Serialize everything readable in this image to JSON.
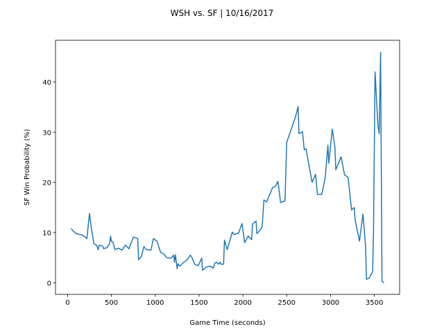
{
  "chart_data": {
    "type": "line",
    "title": "WSH vs. SF | 10/16/2017",
    "xlabel": "Game Time (seconds)",
    "ylabel": "SF Win Probability (%)",
    "color": "#1f77b4",
    "x": [
      40,
      70,
      100,
      150,
      180,
      220,
      250,
      270,
      300,
      330,
      350,
      360,
      400,
      410,
      450,
      480,
      490,
      500,
      520,
      540,
      580,
      620,
      660,
      700,
      750,
      800,
      810,
      840,
      870,
      900,
      950,
      980,
      1020,
      1060,
      1100,
      1130,
      1180,
      1210,
      1220,
      1230,
      1250,
      1260,
      1280,
      1320,
      1360,
      1400,
      1420,
      1450,
      1490,
      1530,
      1540,
      1580,
      1620,
      1640,
      1660,
      1680,
      1700,
      1720,
      1740,
      1750,
      1780,
      1790,
      1820,
      1880,
      1900,
      1950,
      1990,
      2020,
      2060,
      2100,
      2110,
      2150,
      2160,
      2200,
      2220,
      2240,
      2270,
      2340,
      2370,
      2400,
      2430,
      2480,
      2500,
      2600,
      2630,
      2640,
      2680,
      2700,
      2720,
      2790,
      2830,
      2850,
      2900,
      2940,
      2970,
      2980,
      3020,
      3050,
      3060,
      3120,
      3160,
      3200,
      3240,
      3270,
      3280,
      3330,
      3370,
      3400,
      3410,
      3440,
      3480,
      3490,
      3508,
      3540,
      3555,
      3571,
      3587,
      3610
    ],
    "values": [
      10.8,
      10.2,
      9.8,
      9.6,
      9.4,
      8.8,
      13.8,
      11,
      7.8,
      7.5,
      6.6,
      7.5,
      7.3,
      6.8,
      7,
      7.8,
      9.3,
      8.3,
      8,
      6.6,
      6.9,
      6.5,
      7.5,
      6.8,
      9.1,
      8.8,
      4.6,
      5.2,
      7.2,
      6.6,
      6.5,
      8.8,
      8.3,
      6.1,
      5.7,
      5,
      4.9,
      5.5,
      4.1,
      5.6,
      2.8,
      3.8,
      3.3,
      4,
      4.5,
      5.5,
      5,
      3.7,
      3.4,
      4.9,
      2.5,
      3.1,
      3.3,
      3.2,
      2.9,
      3.9,
      4.1,
      3.7,
      4.1,
      3.7,
      3.7,
      8.5,
      6.6,
      10.1,
      9.6,
      9.9,
      11.8,
      8,
      9.3,
      8.6,
      11.7,
      12.3,
      9.8,
      10.6,
      11.2,
      16.5,
      16.1,
      19,
      19.2,
      20.2,
      16,
      16.3,
      28,
      33,
      35.1,
      29.7,
      30.1,
      26.5,
      26.7,
      20,
      21.6,
      17.6,
      17.6,
      21,
      27.4,
      23.8,
      30.6,
      27,
      22.5,
      25.1,
      21.5,
      21,
      14.5,
      15,
      12.6,
      8.3,
      13.7,
      7.2,
      0.7,
      0.9,
      2.2,
      10,
      42,
      31.5,
      29.7,
      45.9,
      0.3,
      0
    ],
    "xlim": [
      -138,
      3788
    ],
    "ylim": [
      -2.3,
      48.3
    ],
    "xticks": [
      0,
      500,
      1000,
      1500,
      2000,
      2500,
      3000,
      3500
    ],
    "yticks": [
      0,
      10,
      20,
      30,
      40
    ]
  }
}
